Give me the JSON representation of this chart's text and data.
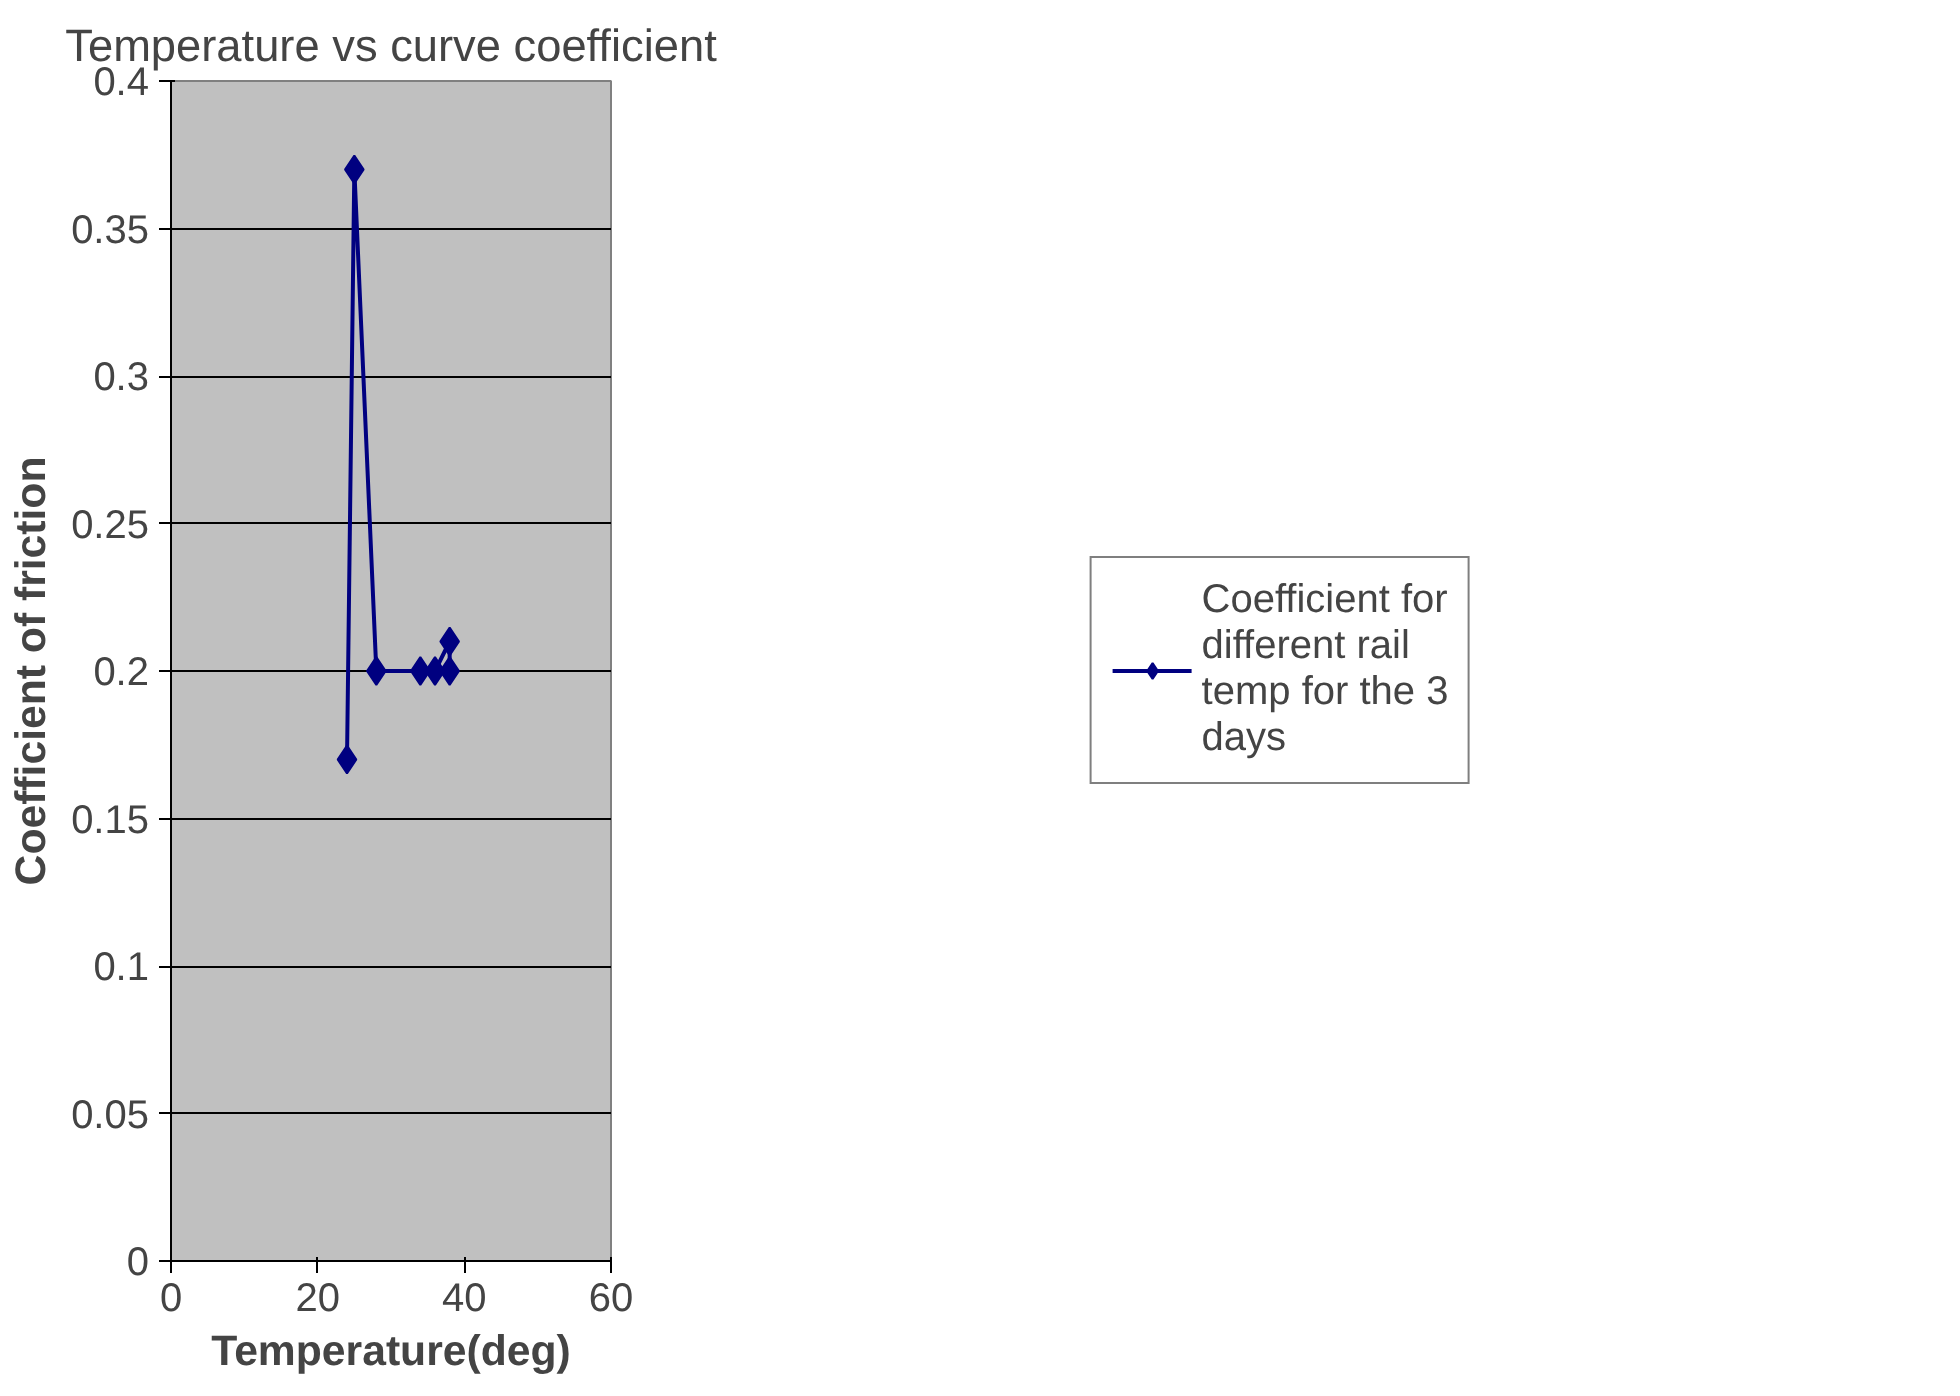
{
  "chart_data": {
    "type": "line",
    "title": "Temperature vs curve coefficient",
    "xlabel": "Temperature(deg)",
    "ylabel": "Coefficient of friction",
    "xlim": [
      0,
      60
    ],
    "xticks": [
      0,
      20,
      40,
      60
    ],
    "ylim": [
      0,
      0.4
    ],
    "yticks": [
      0,
      0.05,
      0.1,
      0.15,
      0.2,
      0.25,
      0.3,
      0.35,
      0.4
    ],
    "grid": "y",
    "legend": "right",
    "marker": "diamond",
    "line_style": "solid",
    "series": [
      {
        "name": "Coefficient for different rail temp for the 3 days",
        "color": "#000080",
        "x": [
          24,
          25,
          28,
          34,
          36,
          38,
          38
        ],
        "values": [
          0.17,
          0.37,
          0.2,
          0.2,
          0.2,
          0.21,
          0.2
        ]
      }
    ]
  }
}
